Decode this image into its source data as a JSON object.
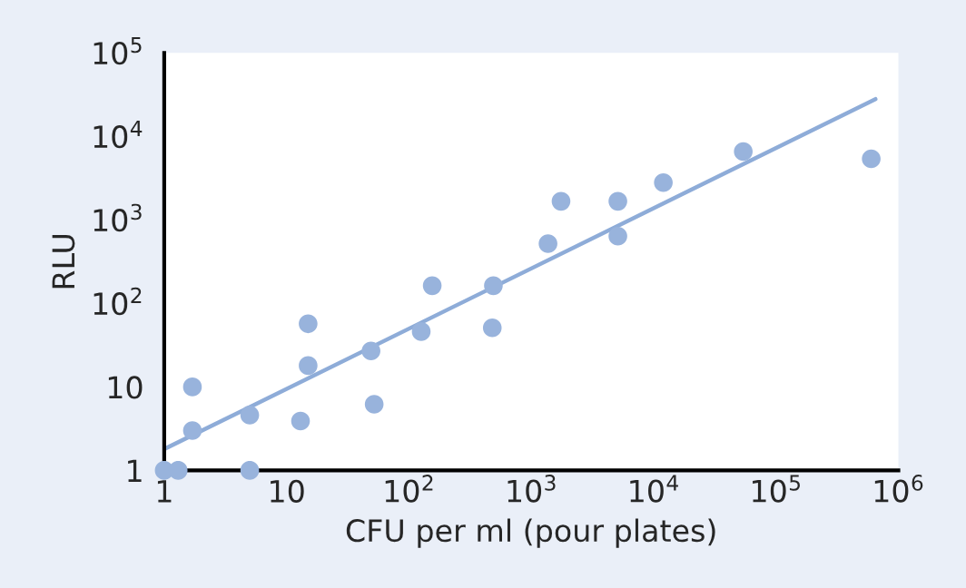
{
  "chart_data": {
    "type": "scatter",
    "xlabel": "CFU per ml (pour plates)",
    "ylabel": "RLU",
    "log": "xy",
    "marker": "circle",
    "grid": false,
    "xlim": [
      1,
      1000000
    ],
    "ylim": [
      1,
      100000
    ],
    "xticks": [
      1,
      10,
      {
        "value": 100,
        "label": "10$^{2}$"
      },
      {
        "value": 1000,
        "label": "10$^{3}$"
      },
      {
        "value": 10000,
        "label": "10$^{4}$"
      },
      {
        "value": 100000,
        "label": "10$^{5}$"
      },
      {
        "value": 1000000,
        "label": "10$^{6}$"
      }
    ],
    "yticks": [
      1,
      10,
      {
        "value": 100,
        "label": "10$^{2}$"
      },
      {
        "value": 1000,
        "label": "10$^{3}$"
      },
      {
        "value": 10000,
        "label": "10$^{4}$"
      },
      {
        "value": 100000,
        "label": "10$^{5}$"
      }
    ],
    "series": [
      {
        "color": "#98b3dc",
        "x": [
          1,
          1.3,
          1.7,
          1.7,
          5,
          5,
          13,
          15,
          15,
          49,
          52,
          126,
          155,
          480,
          490,
          1370,
          1750,
          5100,
          5100,
          12000,
          54000,
          600000
        ],
        "values": [
          1,
          1,
          10,
          3,
          4.6,
          1,
          3.9,
          57,
          18,
          27,
          6.2,
          46,
          163,
          51,
          163,
          520,
          1670,
          1670,
          640,
          2800,
          6600,
          5400
        ]
      },
      {
        "type": "line",
        "marker": "none",
        "color": "#8eacd8",
        "x": [
          1,
          650000
        ],
        "values": [
          1.8,
          28000
        ]
      }
    ]
  }
}
